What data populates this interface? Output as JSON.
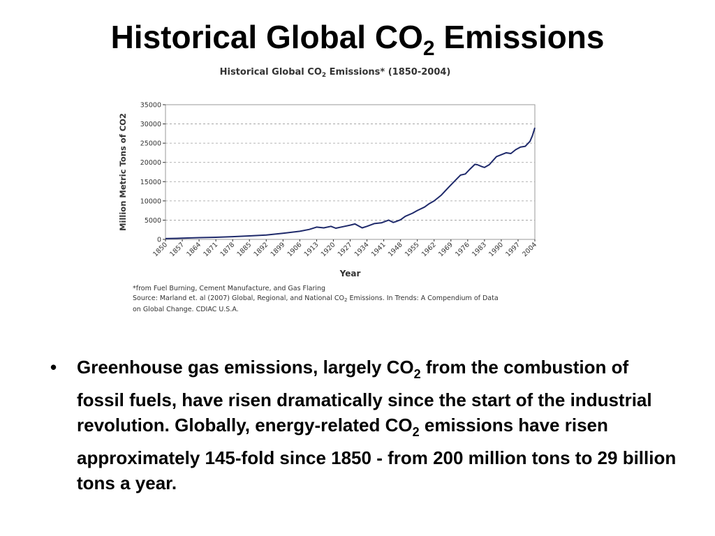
{
  "slide": {
    "title_main": "Historical Global CO",
    "title_sub": "2",
    "title_tail": " Emissions"
  },
  "figure": {
    "heading_main": "Historical Global CO",
    "heading_sub": "2",
    "heading_tail": " Emissions* (1850-2004)",
    "footnote": "*from Fuel Burning, Cement Manufacture, and Gas Flaring",
    "source_main": "Source: Marland et. al (2007) Global, Regional, and National CO",
    "source_sub": "2",
    "source_tail": " Emissions. In Trends: A Compendium of Data",
    "source_line2": "on Global Change. CDIAC U.S.A."
  },
  "bullet": {
    "marker": "•",
    "part1": "Greenhouse gas emissions, largely CO",
    "sub1": "2",
    "part2": " from the combustion of fossil fuels, have risen dramatically since the start of the industrial revolution. Globally, energy-related CO",
    "sub2": "2",
    "part3": " emissions have risen approximately 145-fold since 1850 - from 200 million tons to 29 billion tons a year."
  },
  "colors": {
    "line": "#1f2a6b",
    "grid": "#9a9a9a",
    "axis": "#333333"
  },
  "chart_data": {
    "type": "line",
    "xlabel": "Year",
    "ylabel": "Million Metric Tons of CO2",
    "xlim": [
      1850,
      2004
    ],
    "ylim": [
      0,
      35000
    ],
    "yticks": [
      0,
      5000,
      10000,
      15000,
      20000,
      25000,
      30000,
      35000
    ],
    "xtick_labels": [
      "1850",
      "1857",
      "1864",
      "1871",
      "1878",
      "1885",
      "1892",
      "1899",
      "1906",
      "1913",
      "1920",
      "1927",
      "1934",
      "1941",
      "1948",
      "1955",
      "1962",
      "1969",
      "1976",
      "1983",
      "1990",
      "1997",
      "2004"
    ],
    "grid": "horizontal-dashed",
    "series": [
      {
        "x": [
          1850,
          1857,
          1864,
          1871,
          1878,
          1885,
          1892,
          1899,
          1906,
          1910,
          1913,
          1916,
          1919,
          1921,
          1924,
          1927,
          1929,
          1932,
          1934,
          1937,
          1940,
          1943,
          1945,
          1946,
          1948,
          1950,
          1953,
          1955,
          1958,
          1960,
          1962,
          1965,
          1968,
          1970,
          1973,
          1975,
          1977,
          1979,
          1980,
          1982,
          1983,
          1985,
          1988,
          1990,
          1992,
          1994,
          1996,
          1998,
          2000,
          2002,
          2003,
          2004
        ],
        "values": [
          200,
          300,
          450,
          550,
          700,
          900,
          1150,
          1600,
          2100,
          2600,
          3200,
          3000,
          3400,
          2900,
          3300,
          3700,
          4000,
          3000,
          3400,
          4100,
          4300,
          5000,
          4400,
          4600,
          5100,
          6000,
          6800,
          7500,
          8400,
          9300,
          10000,
          11500,
          13500,
          14800,
          16700,
          17000,
          18300,
          19500,
          19400,
          18900,
          18700,
          19400,
          21500,
          22000,
          22500,
          22300,
          23300,
          24000,
          24200,
          25500,
          27000,
          29000
        ]
      }
    ]
  }
}
